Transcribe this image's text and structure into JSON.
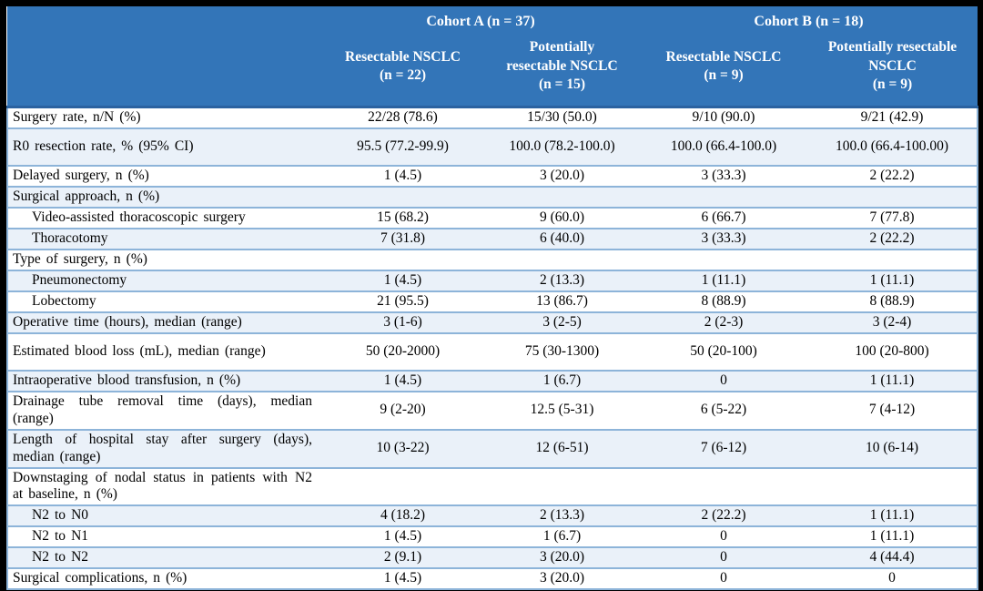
{
  "title": "Surgical outcomes by cohort table",
  "colors": {
    "header_bg": "#3375B8",
    "header_text": "#FFFFFF",
    "row_bg": "#FFFFFF",
    "row_alt_bg": "#EAF1F9",
    "row_border": "#8DB4D9",
    "header_divider": "#2B62A0",
    "frame": "#000000"
  },
  "table": {
    "header": {
      "groups": [
        {
          "label": "Cohort A (n = 37)"
        },
        {
          "label": "Cohort B (n = 18)"
        }
      ],
      "columns": [
        "Resectable NSCLC\n(n = 22)",
        "Potentially\nresectable NSCLC\n(n = 15)",
        "Resectable NSCLC\n(n = 9)",
        "Potentially resectable\nNSCLC\n(n = 9)"
      ]
    },
    "rows": [
      {
        "label": "Surgery rate, n/N (%)",
        "values": [
          "22/28 (78.6)",
          "15/30 (50.0)",
          "9/10 (90.0)",
          "9/21 (42.9)"
        ]
      },
      {
        "label": "R0 resection rate, % (95% CI)",
        "tall": true,
        "values": [
          "95.5 (77.2-99.9)",
          "100.0 (78.2-100.0)",
          "100.0 (66.4-100.0)",
          "100.0 (66.4-100.00)"
        ]
      },
      {
        "label": "Delayed surgery, n (%)",
        "values": [
          "1 (4.5)",
          "3 (20.0)",
          "3 (33.3)",
          "2 (22.2)"
        ]
      },
      {
        "label": "Surgical approach, n (%)",
        "values": [
          "",
          "",
          "",
          ""
        ]
      },
      {
        "label": "Video-assisted thoracoscopic surgery",
        "indent": true,
        "values": [
          "15 (68.2)",
          "9 (60.0)",
          "6 (66.7)",
          "7 (77.8)"
        ]
      },
      {
        "label": "Thoracotomy",
        "indent": true,
        "values": [
          "7 (31.8)",
          "6 (40.0)",
          "3 (33.3)",
          "2 (22.2)"
        ]
      },
      {
        "label": "Type of surgery, n (%)",
        "values": [
          "",
          "",
          "",
          ""
        ]
      },
      {
        "label": "Pneumonectomy",
        "indent": true,
        "values": [
          "1 (4.5)",
          "2 (13.3)",
          "1 (11.1)",
          "1 (11.1)"
        ]
      },
      {
        "label": "Lobectomy",
        "indent": true,
        "values": [
          "21 (95.5)",
          "13 (86.7)",
          "8 (88.9)",
          "8 (88.9)"
        ]
      },
      {
        "label": "Operative time (hours), median (range)",
        "values": [
          "3 (1-6)",
          "3 (2-5)",
          "2 (2-3)",
          "3 (2-4)"
        ]
      },
      {
        "label": "Estimated blood loss (mL), median (range)",
        "tall": true,
        "values": [
          "50 (20-2000)",
          "75 (30-1300)",
          "50 (20-100)",
          "100 (20-800)"
        ]
      },
      {
        "label": "Intraoperative blood transfusion, n (%)",
        "values": [
          "1 (4.5)",
          "1 (6.7)",
          "0",
          "1 (11.1)"
        ]
      },
      {
        "label": "Drainage tube removal time (days), median (range)",
        "values": [
          "9 (2-20)",
          "12.5 (5-31)",
          "6 (5-22)",
          "7 (4-12)"
        ]
      },
      {
        "label": "Length of hospital stay after surgery (days), median (range)",
        "values": [
          "10 (3-22)",
          "12 (6-51)",
          "7 (6-12)",
          "10 (6-14)"
        ]
      },
      {
        "label": "Downstaging of nodal status in patients with N2 at baseline, n (%)",
        "values": [
          "",
          "",
          "",
          ""
        ]
      },
      {
        "label": "N2 to N0",
        "indent": true,
        "values": [
          "4 (18.2)",
          "2 (13.3)",
          "2 (22.2)",
          "1 (11.1)"
        ]
      },
      {
        "label": "N2 to N1",
        "indent": true,
        "values": [
          "1 (4.5)",
          "1 (6.7)",
          "0",
          "1 (11.1)"
        ]
      },
      {
        "label": "N2 to N2",
        "indent": true,
        "values": [
          "2 (9.1)",
          "3 (20.0)",
          "0",
          "4 (44.4)"
        ]
      },
      {
        "label": "Surgical complications, n (%)",
        "values": [
          "1 (4.5)",
          "3 (20.0)",
          "0",
          "0"
        ]
      }
    ]
  }
}
